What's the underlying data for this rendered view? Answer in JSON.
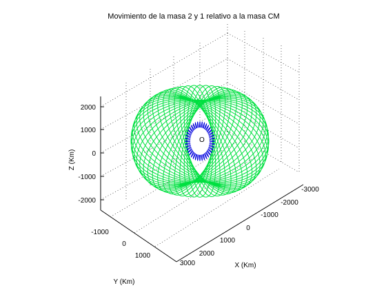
{
  "chart_data": {
    "type": "line",
    "title": "Movimiento de la masa 2 y 1 relativo  a la masa CM",
    "xlabel": "X (Km)",
    "ylabel": "Y (Km)",
    "zlabel": "Z (Km)",
    "xlim": [
      -3000,
      3000
    ],
    "ylim": [
      -2000,
      2000
    ],
    "zlim": [
      -2500,
      2500
    ],
    "x_ticks": [
      "-3000",
      "-2000",
      "-1000",
      "0",
      "1000",
      "2000",
      "3000"
    ],
    "y_ticks": [
      "-1000",
      "0",
      "1000"
    ],
    "z_ticks": [
      "2000",
      "1000",
      "0",
      "-1000",
      "-2000"
    ],
    "grid": true,
    "series": [
      {
        "color": "#00e040",
        "radius_x": 2900,
        "radius_y": 2100,
        "center": [
          0,
          0,
          0
        ],
        "precession_loops": 30
      },
      {
        "color": "#0000dd",
        "radius_x": 1150,
        "radius_y": 1100,
        "inner_radius": 380,
        "center": [
          0,
          0,
          0
        ],
        "precession_loops": 40
      }
    ],
    "center_marker": {
      "label": "O",
      "position": [
        0,
        0,
        0
      ]
    }
  }
}
